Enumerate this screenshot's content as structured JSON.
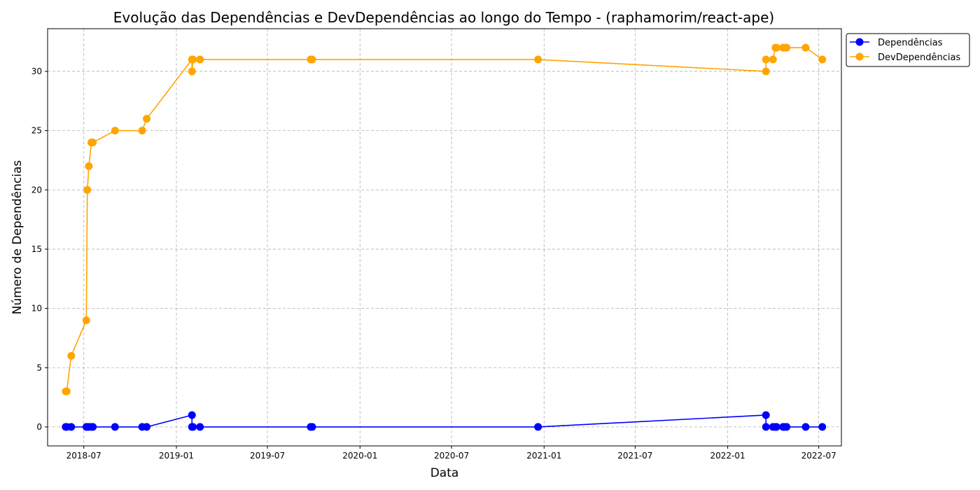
{
  "chart_data": {
    "type": "line",
    "title": "Evolução das Dependências e DevDependências ao longo do Tempo - (raphamorim/react-ape)",
    "xlabel": "Data",
    "ylabel": "Número de Dependências",
    "xlim": [
      "2018-04-20",
      "2022-08-15"
    ],
    "ylim": [
      -1.6,
      33.6
    ],
    "xticks": [
      "2018-07",
      "2019-01",
      "2019-07",
      "2020-01",
      "2020-07",
      "2021-01",
      "2021-07",
      "2022-01",
      "2022-07"
    ],
    "yticks": [
      0,
      5,
      10,
      15,
      20,
      25,
      30
    ],
    "grid": true,
    "legend_position": "upper right (outside plot)",
    "series": [
      {
        "name": "Dependências",
        "color": "#0000ff",
        "marker": "circle",
        "points": [
          [
            "2018-05-26",
            0
          ],
          [
            "2018-05-28",
            0
          ],
          [
            "2018-06-06",
            0
          ],
          [
            "2018-07-06",
            0
          ],
          [
            "2018-07-08",
            0
          ],
          [
            "2018-07-11",
            0
          ],
          [
            "2018-07-16",
            0
          ],
          [
            "2018-07-19",
            0
          ],
          [
            "2018-09-01",
            0
          ],
          [
            "2018-10-25",
            0
          ],
          [
            "2018-11-03",
            0
          ],
          [
            "2019-02-01",
            1
          ],
          [
            "2019-02-01",
            0
          ],
          [
            "2019-02-03",
            0
          ],
          [
            "2019-02-17",
            0
          ],
          [
            "2019-09-25",
            0
          ],
          [
            "2019-09-28",
            0
          ],
          [
            "2020-12-20",
            0
          ],
          [
            "2022-03-18",
            1
          ],
          [
            "2022-03-18",
            0
          ],
          [
            "2022-04-01",
            0
          ],
          [
            "2022-04-06",
            0
          ],
          [
            "2022-04-08",
            0
          ],
          [
            "2022-04-21",
            0
          ],
          [
            "2022-04-23",
            0
          ],
          [
            "2022-04-28",
            0
          ],
          [
            "2022-06-05",
            0
          ],
          [
            "2022-07-08",
            0
          ]
        ]
      },
      {
        "name": "DevDependências",
        "color": "#ffa500",
        "marker": "circle",
        "points": [
          [
            "2018-05-26",
            3
          ],
          [
            "2018-05-28",
            3
          ],
          [
            "2018-06-06",
            6
          ],
          [
            "2018-07-06",
            9
          ],
          [
            "2018-07-08",
            20
          ],
          [
            "2018-07-11",
            22
          ],
          [
            "2018-07-16",
            24
          ],
          [
            "2018-07-19",
            24
          ],
          [
            "2018-09-01",
            25
          ],
          [
            "2018-10-25",
            25
          ],
          [
            "2018-11-03",
            26
          ],
          [
            "2019-02-01",
            31
          ],
          [
            "2019-02-01",
            30
          ],
          [
            "2019-02-03",
            31
          ],
          [
            "2019-02-17",
            31
          ],
          [
            "2019-09-25",
            31
          ],
          [
            "2019-09-28",
            31
          ],
          [
            "2020-12-20",
            31
          ],
          [
            "2022-03-18",
            30
          ],
          [
            "2022-03-18",
            31
          ],
          [
            "2022-04-01",
            31
          ],
          [
            "2022-04-06",
            32
          ],
          [
            "2022-04-08",
            32
          ],
          [
            "2022-04-21",
            32
          ],
          [
            "2022-04-23",
            32
          ],
          [
            "2022-04-28",
            32
          ],
          [
            "2022-06-05",
            32
          ],
          [
            "2022-07-08",
            31
          ]
        ]
      }
    ]
  }
}
